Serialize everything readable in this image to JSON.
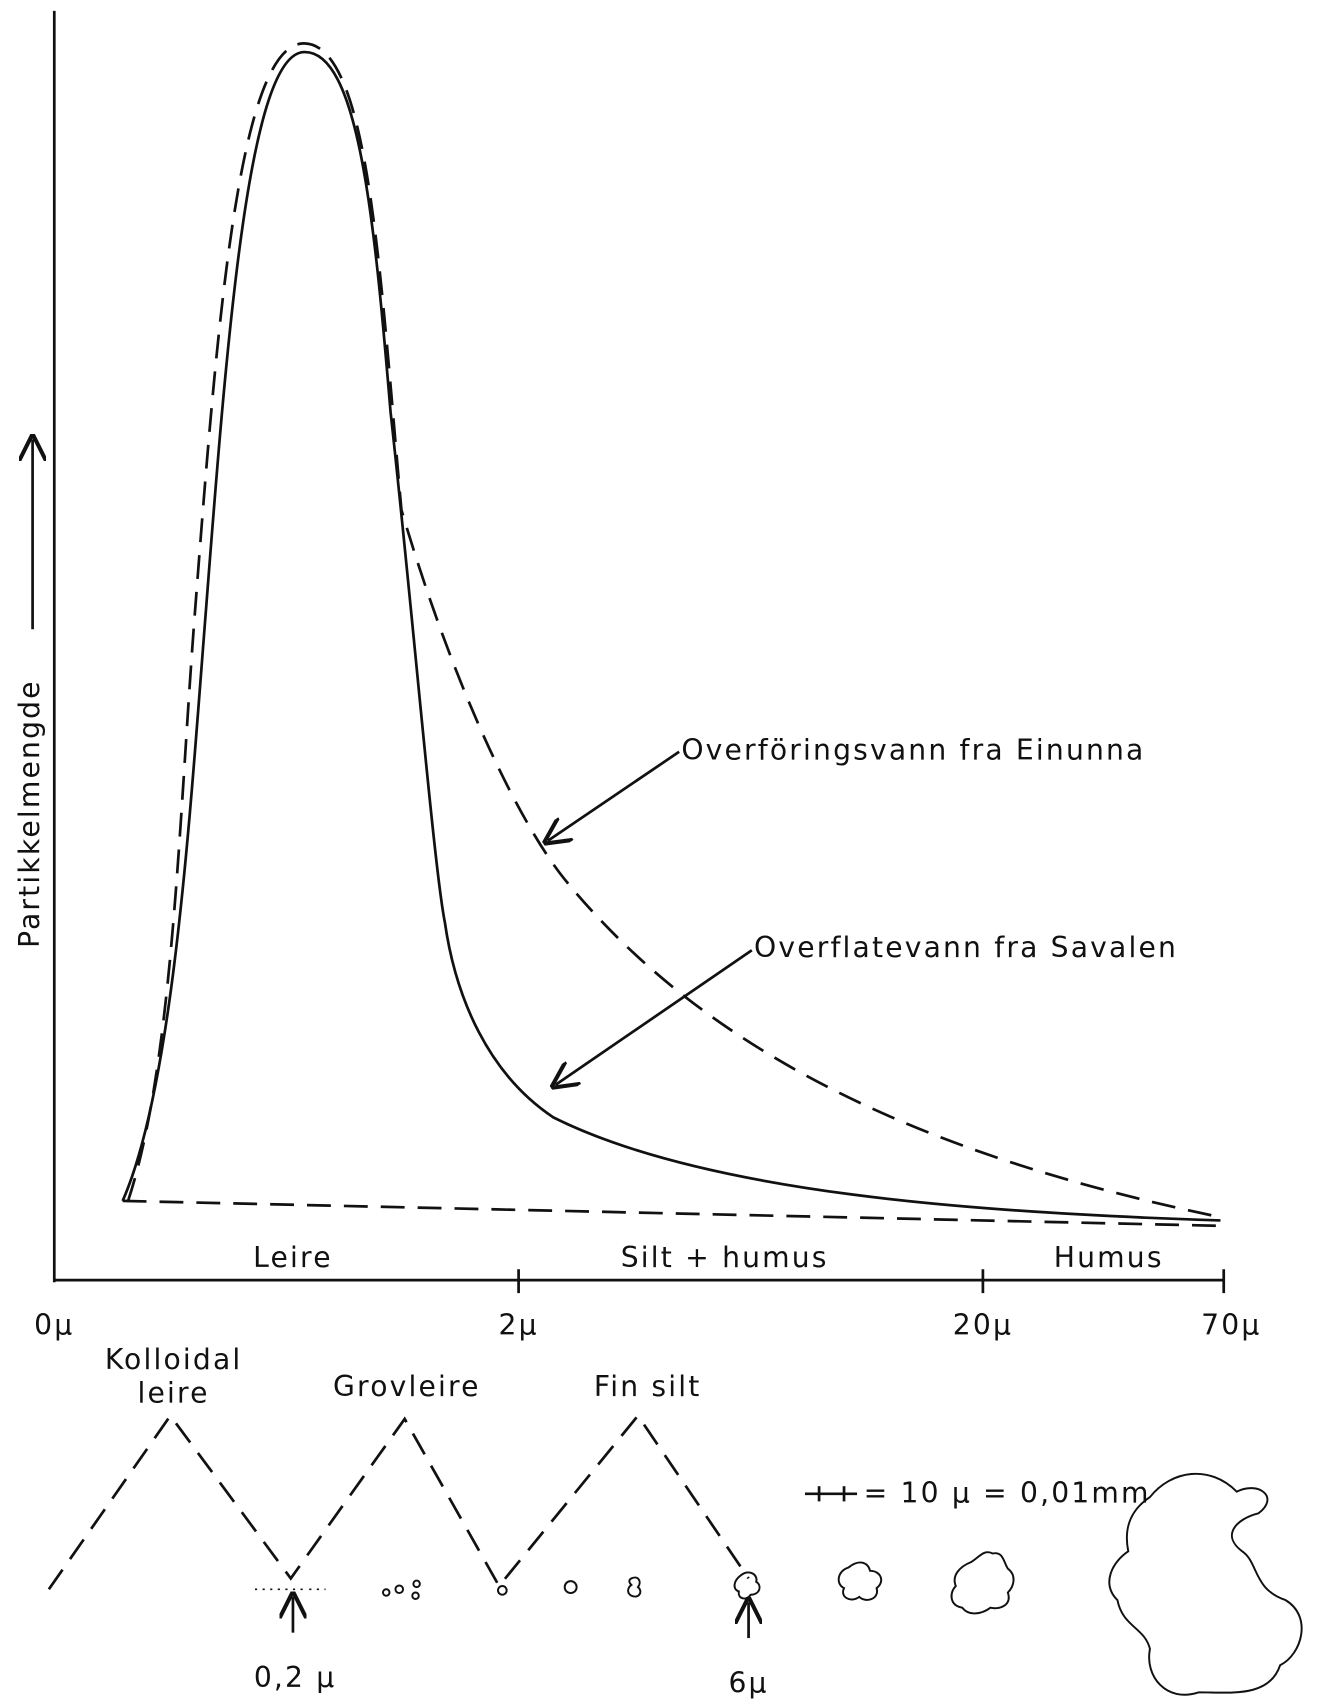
{
  "y_axis": {
    "label": "Partikkelmengde"
  },
  "x_axis": {
    "ticks": [
      "0µ",
      "2µ",
      "20µ",
      "70µ"
    ]
  },
  "regions": [
    "Leire",
    "Silt + humus",
    "Humus"
  ],
  "annotations": [
    "Overföringsvann fra Einunna",
    "Overflatevann fra Savalen"
  ],
  "fractions": {
    "kolloidal": [
      "Kolloidal",
      "leire"
    ],
    "grovleire": "Grovleire",
    "fin_silt": "Fin silt"
  },
  "markers": [
    "0,2 µ",
    "6µ"
  ],
  "scale": "= 10 µ = 0,01mm"
}
